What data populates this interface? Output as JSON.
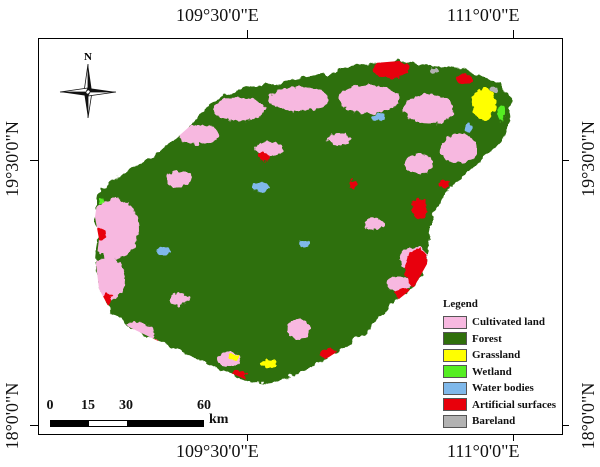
{
  "coords": {
    "top_left": "109°30'0\"E",
    "top_right": "111°0'0\"E",
    "bottom_left": "109°30'0\"E",
    "bottom_right": "111°0'0\"E",
    "left_upper": "19°30'0\"N",
    "left_lower": "18°0'0\"N",
    "right_upper": "19°30'0\"N",
    "right_lower": "18°0'0\"N"
  },
  "north_label": "N",
  "legend": {
    "title": "Legend",
    "items": [
      {
        "label": "Cultivated land",
        "color": "#f7b8e0"
      },
      {
        "label": "Forest",
        "color": "#2f6f0b"
      },
      {
        "label": "Grassland",
        "color": "#ffff00"
      },
      {
        "label": "Wetland",
        "color": "#55ee22"
      },
      {
        "label": "Water bodies",
        "color": "#7fb8ea"
      },
      {
        "label": "Artificial surfaces",
        "color": "#e8000b"
      },
      {
        "label": "Bareland",
        "color": "#b2b2b2"
      }
    ]
  },
  "scale_bar": {
    "labels": [
      "0",
      "15",
      "30",
      "60"
    ],
    "unit": "km"
  }
}
